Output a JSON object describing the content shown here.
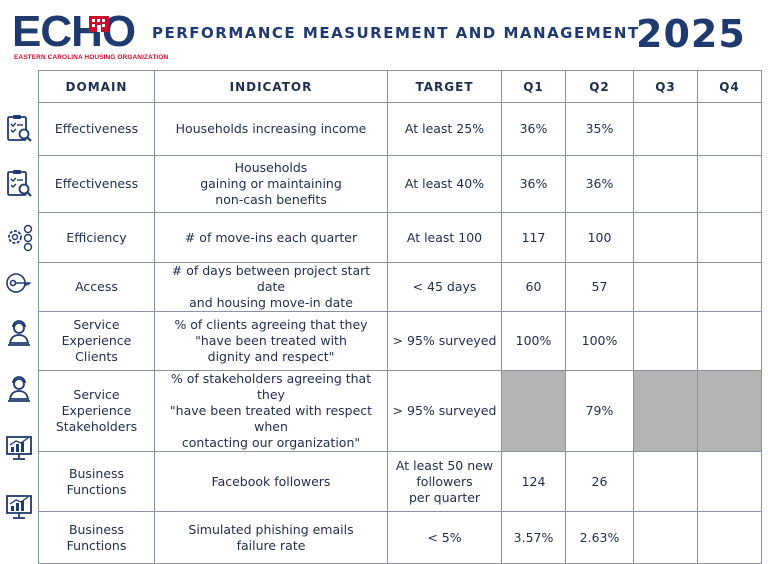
{
  "header": {
    "logo_text": "ECHO",
    "logo_subtitle": "EASTERN CAROLINA HOUSING ORGANIZATION",
    "title": "PERFORMANCE MEASUREMENT AND MANAGEMENT",
    "year": "2025"
  },
  "colors": {
    "navy": "#1f3a6e",
    "red": "#c8102e",
    "gray_cell": "#b4b4b4"
  },
  "table": {
    "headers": [
      "DOMAIN",
      "INDICATOR",
      "TARGET",
      "Q1",
      "Q2",
      "Q3",
      "Q4"
    ],
    "rows": [
      {
        "icon": "checklist-magnifier-icon",
        "domain": "Effectiveness",
        "indicator": "Households increasing income",
        "target": "At least 25%",
        "q1": "36%",
        "q2": "35%",
        "q3": "",
        "q4": ""
      },
      {
        "icon": "checklist-magnifier-icon",
        "domain": "Effectiveness",
        "indicator": "Households\ngaining or maintaining\nnon-cash benefits",
        "target": "At least 40%",
        "q1": "36%",
        "q2": "36%",
        "q3": "",
        "q4": ""
      },
      {
        "icon": "gears-dollar-icon",
        "domain": "Efficiency",
        "indicator": "# of move-ins each quarter",
        "target": "At least 100",
        "q1": "117",
        "q2": "100",
        "q3": "",
        "q4": ""
      },
      {
        "icon": "key-icon",
        "domain": "Access",
        "indicator": "# of days between project start date\nand housing move-in date",
        "target": "< 45 days",
        "q1": "60",
        "q2": "57",
        "q3": "",
        "q4": ""
      },
      {
        "icon": "agent-icon",
        "domain": "Service Experience\nClients",
        "indicator": "% of clients agreeing that they\n\"have been treated with\ndignity and respect\"",
        "target": "> 95% surveyed",
        "q1": "100%",
        "q2": "100%",
        "q3": "",
        "q4": ""
      },
      {
        "icon": "agent-icon",
        "domain": "Service Experience\nStakeholders",
        "indicator": "% of stakeholders agreeing that they\n\"have been treated with respect when\ncontacting our organization\"",
        "target": "> 95% surveyed",
        "q1": "",
        "q2": "79%",
        "q3": "",
        "q4": "",
        "gray": [
          "q1",
          "q3",
          "q4"
        ]
      },
      {
        "icon": "monitor-chart-icon",
        "domain": "Business Functions",
        "indicator": "Facebook followers",
        "target": "At least 50 new\nfollowers\nper quarter",
        "q1": "124",
        "q2": "26",
        "q3": "",
        "q4": ""
      },
      {
        "icon": "monitor-chart-icon",
        "domain": "Business Functions",
        "indicator": "Simulated phishing emails\nfailure rate",
        "target": "< 5%",
        "q1": "3.57%",
        "q2": "2.63%",
        "q3": "",
        "q4": ""
      }
    ]
  }
}
